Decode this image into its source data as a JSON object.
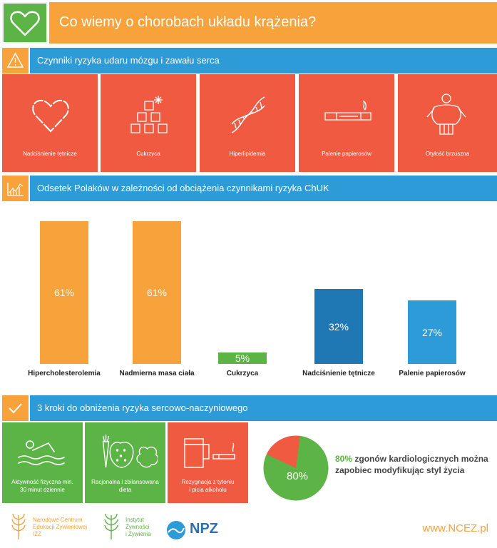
{
  "header": {
    "title": "Co wiemy o chorobach układu krążenia?",
    "icon": "heart-icon"
  },
  "section1": {
    "title": "Czynniki ryzyka udaru mózgu i zawału serca",
    "icon": "warning-icon"
  },
  "risk_factors": [
    {
      "label": "Nadciśnienie tętnicze",
      "icon": "heart-outline-icon"
    },
    {
      "label": "Cukrzyca",
      "icon": "sugar-cubes-icon"
    },
    {
      "label": "Hiperlipidemia",
      "icon": "dna-icon"
    },
    {
      "label": "Palenie papierosów",
      "icon": "cigarette-icon"
    },
    {
      "label": "Otyłość brzuszna",
      "icon": "obesity-icon"
    }
  ],
  "section2": {
    "title": "Odsetek Polaków w zależności od obciążenia czynnikami ryzyka ChUK",
    "icon": "chart-icon"
  },
  "chart_data": {
    "type": "bar",
    "categories": [
      "Hipercholesterolemia",
      "Nadmierna masa ciała",
      "Cukrzyca",
      "Nadciśnienie tętnicze",
      "Palenie papierosów"
    ],
    "values": [
      61,
      61,
      5,
      32,
      27
    ],
    "value_labels": [
      "61%",
      "61%",
      "5%",
      "32%",
      "27%"
    ],
    "colors": [
      "#f7a23b",
      "#f7a23b",
      "#5cb446",
      "#1f77b4",
      "#2d9bd8"
    ],
    "ylim": [
      0,
      61
    ]
  },
  "section3": {
    "title": "3 kroki do obniżenia ryzyka sercowo-naczyniowego",
    "icon": "check-icon"
  },
  "steps": [
    {
      "label_line1": "Aktywność fizyczna min.",
      "label_line2": "30 minut dziennie",
      "icon": "swimmer-icon",
      "color": "#5cb446"
    },
    {
      "label_line1": "Racjonalna i zbilansowana",
      "label_line2": "dieta",
      "icon": "vegetables-icon",
      "color": "#5cb446"
    },
    {
      "label_line1": "Rezygnacja z tytoniu",
      "label_line2": "i picia alkoholu",
      "icon": "beer-cigarette-icon",
      "color": "#ef5a41"
    }
  ],
  "pie": {
    "value_label": "80%",
    "fraction": 0.8,
    "highlight": "80%",
    "text_line1": " zgonów kardiologicznych można",
    "text_line2": "zapobiec modyfikując styl życia"
  },
  "footer": {
    "logo1": [
      "Narodowe Centrum",
      "Edukacji Żywieniowej",
      "IŻŻ"
    ],
    "logo2": [
      "Instytut",
      "Żywności",
      "i Żywienia"
    ],
    "npz": "NPZ",
    "site": "www.NCEZ.pl"
  }
}
